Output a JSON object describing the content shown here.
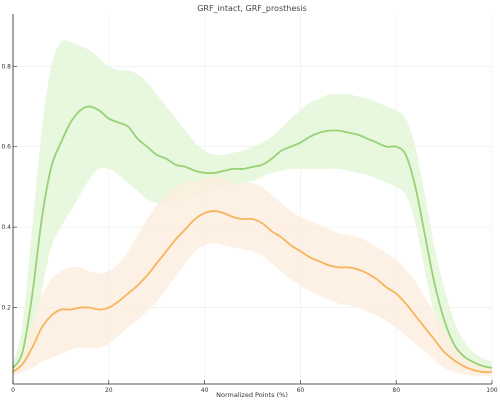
{
  "chart_data": {
    "type": "line",
    "title": "GRF_intact, GRF_prosthesis",
    "xlabel": "Normalized Points (%)",
    "ylabel": "",
    "xlim": [
      0,
      100
    ],
    "ylim": [
      0.01,
      0.93
    ],
    "x_ticks": [
      0,
      20,
      40,
      60,
      80,
      100
    ],
    "y_ticks": [
      0.2,
      0.4,
      0.6,
      0.8
    ],
    "grid": true,
    "legend": "none",
    "colors": {
      "intact_line": "#99d175",
      "intact_band": "#e2f6d6",
      "prosthesis_line": "#f7b45c",
      "prosthesis_band": "#fdeee0"
    },
    "series": [
      {
        "color": "#99d175",
        "band_color": "#e2f6d6",
        "x": [
          0,
          2,
          4,
          6,
          8,
          10,
          12,
          14,
          16,
          18,
          20,
          22,
          24,
          26,
          28,
          30,
          32,
          34,
          36,
          38,
          40,
          42,
          44,
          46,
          48,
          50,
          52,
          54,
          56,
          58,
          60,
          62,
          64,
          66,
          68,
          70,
          72,
          74,
          76,
          78,
          80,
          82,
          84,
          86,
          88,
          90,
          92,
          94,
          96,
          98,
          100
        ],
        "mean": [
          0.05,
          0.09,
          0.23,
          0.42,
          0.55,
          0.61,
          0.66,
          0.69,
          0.7,
          0.69,
          0.67,
          0.66,
          0.65,
          0.62,
          0.6,
          0.58,
          0.57,
          0.555,
          0.55,
          0.54,
          0.535,
          0.535,
          0.54,
          0.545,
          0.545,
          0.55,
          0.555,
          0.57,
          0.59,
          0.6,
          0.61,
          0.625,
          0.635,
          0.64,
          0.64,
          0.635,
          0.63,
          0.62,
          0.61,
          0.6,
          0.6,
          0.58,
          0.5,
          0.38,
          0.26,
          0.17,
          0.11,
          0.08,
          0.065,
          0.055,
          0.05
        ],
        "upper": [
          0.06,
          0.16,
          0.4,
          0.64,
          0.8,
          0.86,
          0.86,
          0.85,
          0.84,
          0.82,
          0.8,
          0.79,
          0.79,
          0.78,
          0.76,
          0.73,
          0.7,
          0.67,
          0.64,
          0.61,
          0.59,
          0.58,
          0.58,
          0.585,
          0.59,
          0.6,
          0.61,
          0.625,
          0.645,
          0.67,
          0.69,
          0.71,
          0.72,
          0.73,
          0.73,
          0.73,
          0.725,
          0.72,
          0.71,
          0.7,
          0.69,
          0.67,
          0.6,
          0.48,
          0.35,
          0.25,
          0.17,
          0.12,
          0.09,
          0.075,
          0.065
        ],
        "lower": [
          0.04,
          0.05,
          0.1,
          0.24,
          0.35,
          0.4,
          0.44,
          0.48,
          0.52,
          0.545,
          0.545,
          0.53,
          0.51,
          0.49,
          0.47,
          0.46,
          0.46,
          0.465,
          0.47,
          0.48,
          0.485,
          0.49,
          0.5,
          0.505,
          0.51,
          0.515,
          0.525,
          0.535,
          0.54,
          0.545,
          0.545,
          0.545,
          0.545,
          0.545,
          0.545,
          0.54,
          0.535,
          0.53,
          0.52,
          0.51,
          0.5,
          0.48,
          0.41,
          0.29,
          0.18,
          0.1,
          0.06,
          0.045,
          0.04,
          0.035,
          0.035
        ]
      },
      {
        "color": "#f7b45c",
        "band_color": "#fdeee0",
        "x": [
          0,
          2,
          4,
          6,
          8,
          10,
          12,
          14,
          16,
          18,
          20,
          22,
          24,
          26,
          28,
          30,
          32,
          34,
          36,
          38,
          40,
          42,
          44,
          46,
          48,
          50,
          52,
          54,
          56,
          58,
          60,
          62,
          64,
          66,
          68,
          70,
          72,
          74,
          76,
          78,
          80,
          82,
          84,
          86,
          88,
          90,
          92,
          94,
          96,
          98,
          100
        ],
        "mean": [
          0.04,
          0.06,
          0.1,
          0.15,
          0.18,
          0.195,
          0.195,
          0.2,
          0.2,
          0.195,
          0.2,
          0.215,
          0.235,
          0.255,
          0.28,
          0.31,
          0.34,
          0.37,
          0.395,
          0.42,
          0.435,
          0.44,
          0.435,
          0.425,
          0.42,
          0.42,
          0.41,
          0.39,
          0.375,
          0.355,
          0.34,
          0.325,
          0.315,
          0.305,
          0.3,
          0.3,
          0.295,
          0.285,
          0.27,
          0.25,
          0.235,
          0.21,
          0.18,
          0.15,
          0.12,
          0.09,
          0.07,
          0.055,
          0.045,
          0.04,
          0.04
        ],
        "upper": [
          0.05,
          0.09,
          0.16,
          0.23,
          0.27,
          0.29,
          0.3,
          0.3,
          0.29,
          0.285,
          0.29,
          0.31,
          0.34,
          0.38,
          0.42,
          0.455,
          0.48,
          0.5,
          0.51,
          0.515,
          0.52,
          0.525,
          0.52,
          0.51,
          0.51,
          0.51,
          0.5,
          0.48,
          0.46,
          0.44,
          0.425,
          0.415,
          0.405,
          0.395,
          0.385,
          0.38,
          0.375,
          0.365,
          0.35,
          0.335,
          0.32,
          0.295,
          0.265,
          0.225,
          0.185,
          0.145,
          0.11,
          0.085,
          0.065,
          0.055,
          0.05
        ],
        "lower": [
          0.03,
          0.04,
          0.05,
          0.065,
          0.075,
          0.085,
          0.095,
          0.1,
          0.1,
          0.1,
          0.11,
          0.13,
          0.15,
          0.17,
          0.19,
          0.215,
          0.245,
          0.28,
          0.31,
          0.34,
          0.355,
          0.36,
          0.355,
          0.35,
          0.345,
          0.34,
          0.33,
          0.31,
          0.29,
          0.27,
          0.255,
          0.24,
          0.23,
          0.22,
          0.21,
          0.205,
          0.2,
          0.19,
          0.18,
          0.165,
          0.15,
          0.13,
          0.11,
          0.09,
          0.07,
          0.05,
          0.04,
          0.035,
          0.03,
          0.03,
          0.03
        ]
      }
    ]
  }
}
